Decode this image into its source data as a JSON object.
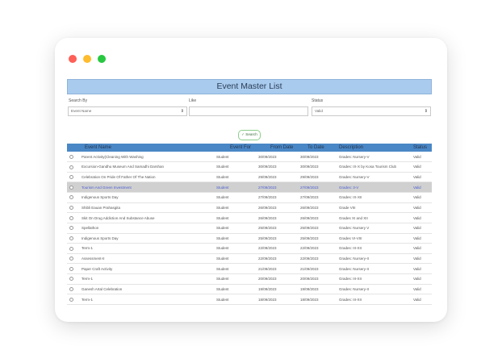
{
  "window": {
    "title": "Event Master List"
  },
  "filters": {
    "search_by_label": "Search By",
    "search_by_value": "Event Name",
    "like_label": "Like",
    "like_value": "",
    "status_label": "Status",
    "status_value": "Valid"
  },
  "search_button": {
    "label": "Search"
  },
  "table": {
    "columns": [
      "Event Name",
      "Event For",
      "From Date",
      "To Date",
      "Description",
      "Status"
    ],
    "rows": [
      {
        "name": "Parent Activity(Cleaning With Washing",
        "for": "Student",
        "from": "30/09/2023",
        "to": "30/09/2023",
        "desc": "Grades: Nursery-V",
        "status": "Valid"
      },
      {
        "name": "Excursion-Gandhu Museum And Samadhi Darshan",
        "for": "Student",
        "from": "30/09/2023",
        "to": "30/09/2023",
        "desc": "Grades: IX-X by Kosa Tourism Club",
        "status": "Valid"
      },
      {
        "name": "Celebration On Pride Of Father Of The Nation",
        "for": "Student",
        "from": "29/09/2023",
        "to": "29/09/2023",
        "desc": "Grades: Nursery-V",
        "status": "Valid"
      },
      {
        "name": "Tourism And Green Investment",
        "for": "Student",
        "from": "27/09/2023",
        "to": "27/09/2023",
        "desc": "Grades: 3-V",
        "status": "Valid",
        "selected": true
      },
      {
        "name": "Indigenous Sports Day",
        "for": "Student",
        "from": "27/09/2023",
        "to": "27/09/2023",
        "desc": "Grades: IX-XII",
        "status": "Valid"
      },
      {
        "name": "Shibli Eauan Prahasgita",
        "for": "Student",
        "from": "26/09/2023",
        "to": "26/09/2023",
        "desc": "Grade VIII",
        "status": "Valid"
      },
      {
        "name": "Skit On Drug Addiction And Substance Abuse",
        "for": "Student",
        "from": "26/09/2023",
        "to": "26/09/2023",
        "desc": "Grades XI and XII",
        "status": "Valid"
      },
      {
        "name": "Spellathon",
        "for": "Student",
        "from": "25/09/2023",
        "to": "25/09/2023",
        "desc": "Grades: Nursery V",
        "status": "Valid"
      },
      {
        "name": "Indigenous Sports Day",
        "for": "Student",
        "from": "25/09/2023",
        "to": "25/09/2023",
        "desc": "Grades VI-VIII",
        "status": "Valid"
      },
      {
        "name": "Term-1",
        "for": "Student",
        "from": "22/09/2023",
        "to": "22/09/2023",
        "desc": "Grades: III-XII",
        "status": "Valid"
      },
      {
        "name": "Assessment-II",
        "for": "Student",
        "from": "22/09/2023",
        "to": "22/09/2023",
        "desc": "Grades: Nursery-II",
        "status": "Valid"
      },
      {
        "name": "Paper Craft Activity",
        "for": "Student",
        "from": "21/09/2023",
        "to": "21/09/2023",
        "desc": "Grades: Nursery-II",
        "status": "Valid"
      },
      {
        "name": "Term-1",
        "for": "Student",
        "from": "20/09/2023",
        "to": "20/09/2023",
        "desc": "Grades: III-XII",
        "status": "Valid"
      },
      {
        "name": "Ganesh Artal Celebration",
        "for": "Student",
        "from": "19/09/2023",
        "to": "19/09/2023",
        "desc": "Grades: Nursery-II",
        "status": "Valid"
      },
      {
        "name": "Term-1",
        "for": "Student",
        "from": "18/09/2023",
        "to": "18/09/2023",
        "desc": "Grades: III-XII",
        "status": "Valid"
      }
    ]
  },
  "colors": {
    "title_bar": "#a9cbee",
    "table_header": "#4a87c6",
    "selected_row": "#d0d0d0",
    "selected_text": "#4a5ed0",
    "search_border": "#8ccf8a"
  },
  "icons": {
    "search": "check-icon"
  }
}
